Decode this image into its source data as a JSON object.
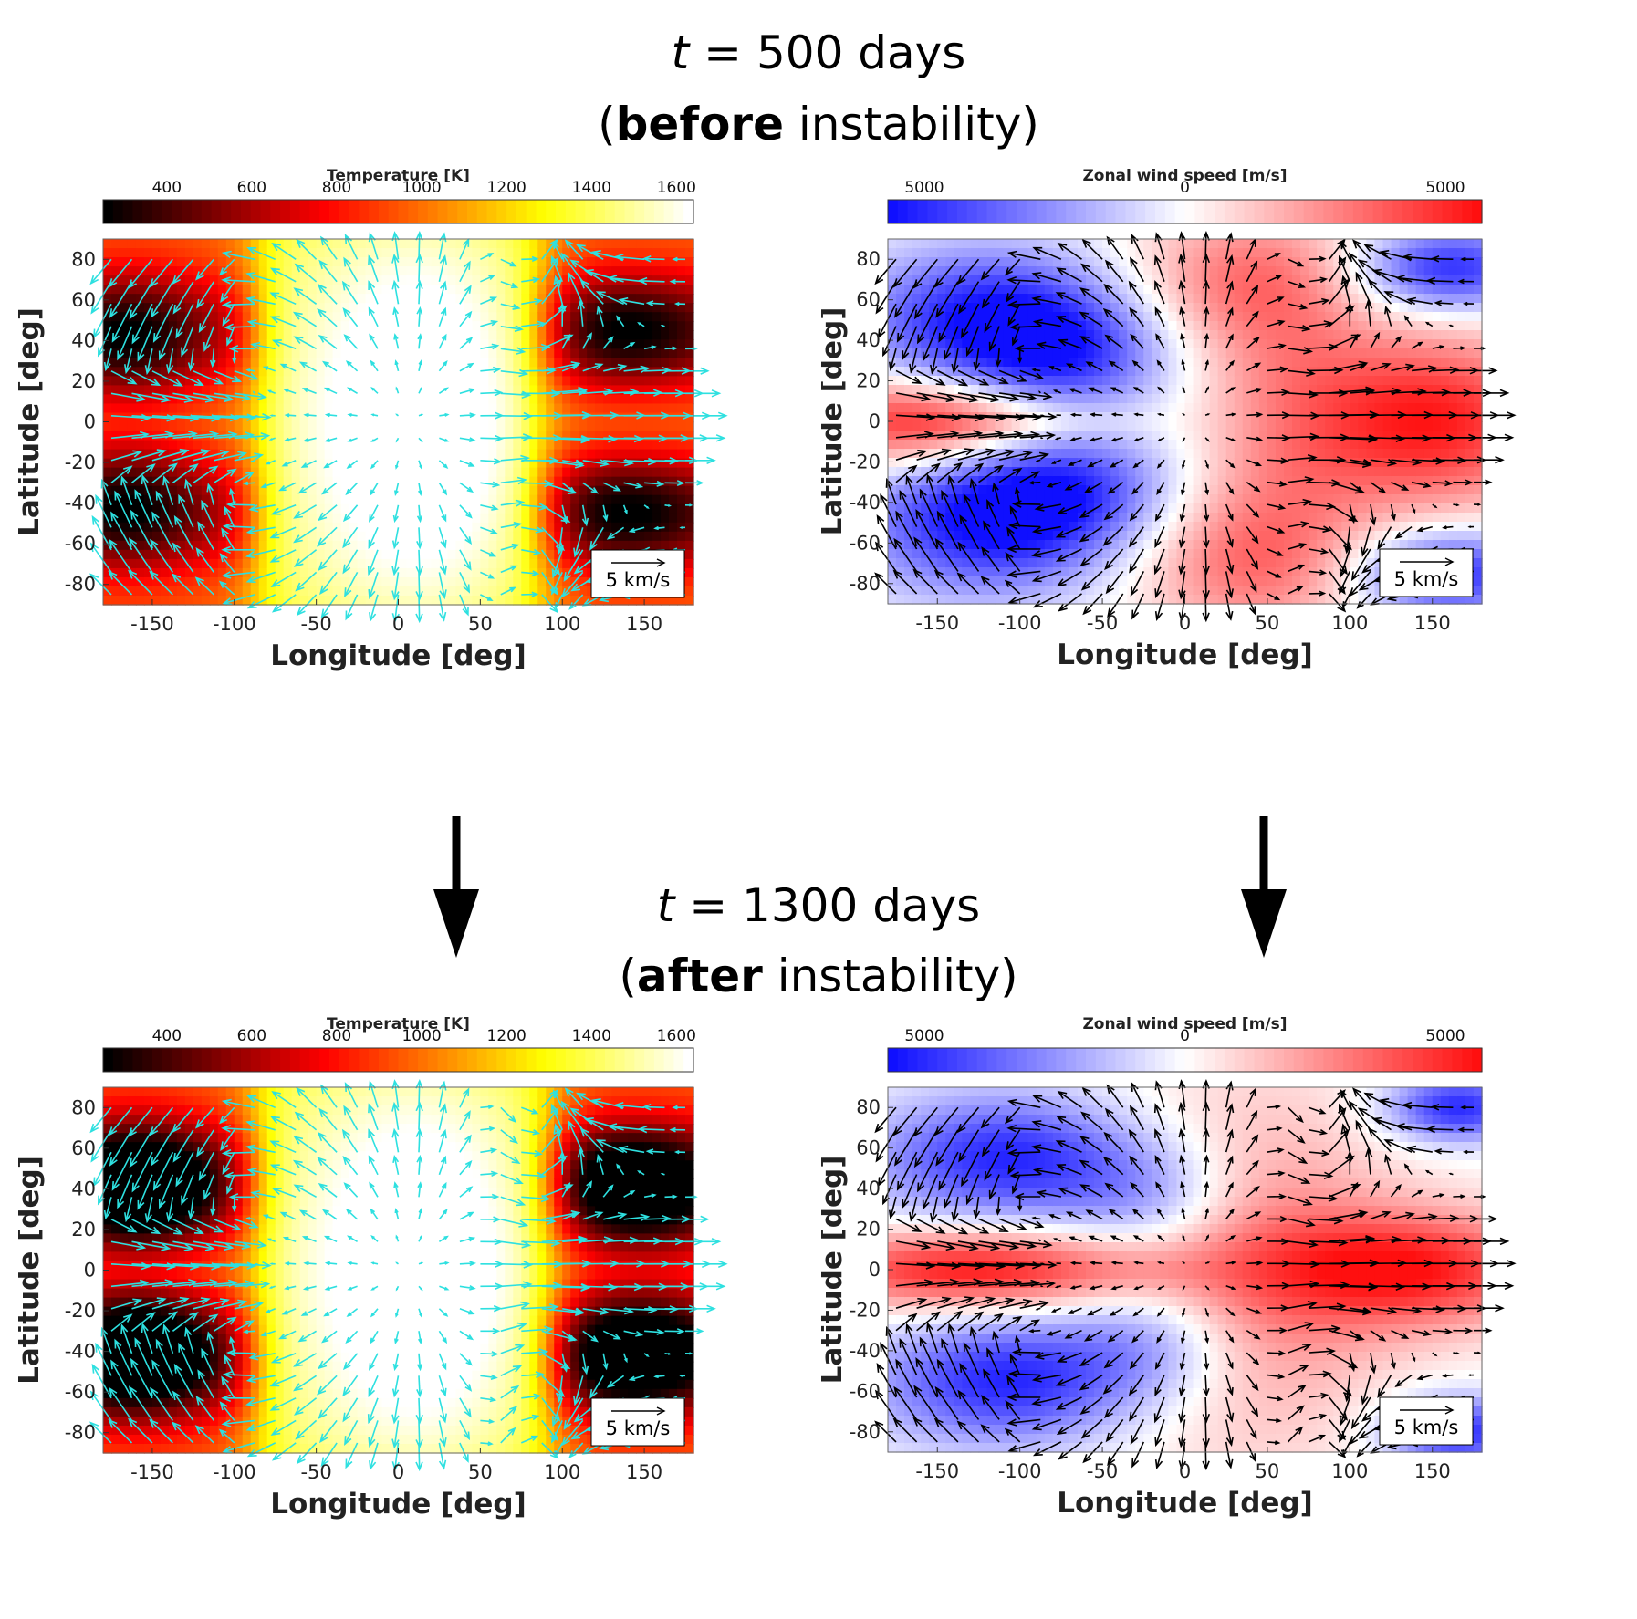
{
  "titles": [
    {
      "t_symbol": "t",
      "equation": " = 500 days",
      "paren_open": "(",
      "emphasis": "before",
      "rest": " instability)"
    },
    {
      "t_symbol": "t",
      "equation": " = 1300 days",
      "paren_open": "(",
      "emphasis": "after",
      "rest": " instability)"
    }
  ],
  "colors": {
    "wind_arrows_temperature": "#2ee0e0",
    "wind_arrows_zonal": "#000000",
    "zonal_negative": "#1010ff",
    "zonal_positive": "#ff1010"
  },
  "chart_data": [
    {
      "type": "heatmap",
      "id": "temp-500",
      "colorbar_label": "Temperature [K]",
      "colorbar_ticks": [
        "400",
        "600",
        "800",
        "1000",
        "1200",
        "1400",
        "1600"
      ],
      "colorbar_range": [
        250,
        1640
      ],
      "colormap": "hot",
      "xlabel": "Longitude [deg]",
      "ylabel": "Latitude [deg]",
      "x_ticks": [
        "-150",
        "-100",
        "-50",
        "0",
        "50",
        "100",
        "150"
      ],
      "y_ticks": [
        "80",
        "60",
        "40",
        "20",
        "0",
        "-20",
        "-40",
        "-60",
        "-80"
      ],
      "xlim": [
        -180,
        180
      ],
      "ylim": [
        -90,
        90
      ],
      "scale_label": "5 km/s",
      "dayside_lon_range": [
        -90,
        90
      ],
      "arrow_color": "#2ee0e0"
    },
    {
      "type": "heatmap",
      "id": "zonal-500",
      "colorbar_label": "Zonal wind speed [m/s]",
      "colorbar_ticks": [
        "5000",
        "0",
        "5000"
      ],
      "colorbar_range": [
        -5000,
        5000
      ],
      "colormap": "blue-white-red",
      "xlabel": "Longitude [deg]",
      "ylabel": "Latitude [deg]",
      "x_ticks": [
        "-150",
        "-100",
        "-50",
        "0",
        "50",
        "100",
        "150"
      ],
      "y_ticks": [
        "80",
        "60",
        "40",
        "20",
        "0",
        "-20",
        "-40",
        "-60",
        "-80"
      ],
      "xlim": [
        -180,
        180
      ],
      "ylim": [
        -90,
        90
      ],
      "scale_label": "5 km/s",
      "arrow_color": "#000000"
    },
    {
      "type": "heatmap",
      "id": "temp-1300",
      "colorbar_label": "Temperature [K]",
      "colorbar_ticks": [
        "400",
        "600",
        "800",
        "1000",
        "1200",
        "1400",
        "1600"
      ],
      "colorbar_range": [
        250,
        1640
      ],
      "colormap": "hot",
      "xlabel": "Longitude [deg]",
      "ylabel": "Latitude [deg]",
      "x_ticks": [
        "-150",
        "-100",
        "-50",
        "0",
        "50",
        "100",
        "150"
      ],
      "y_ticks": [
        "80",
        "60",
        "40",
        "20",
        "0",
        "-20",
        "-40",
        "-60",
        "-80"
      ],
      "xlim": [
        -180,
        180
      ],
      "ylim": [
        -90,
        90
      ],
      "scale_label": "5 km/s",
      "dayside_lon_range": [
        -90,
        95
      ],
      "arrow_color": "#2ee0e0"
    },
    {
      "type": "heatmap",
      "id": "zonal-1300",
      "colorbar_label": "Zonal wind speed [m/s]",
      "colorbar_ticks": [
        "5000",
        "0",
        "5000"
      ],
      "colorbar_range": [
        -5000,
        5000
      ],
      "colormap": "blue-white-red",
      "xlabel": "Longitude [deg]",
      "ylabel": "Latitude [deg]",
      "x_ticks": [
        "-150",
        "-100",
        "-50",
        "0",
        "50",
        "100",
        "150"
      ],
      "y_ticks": [
        "80",
        "60",
        "40",
        "20",
        "0",
        "-20",
        "-40",
        "-60",
        "-80"
      ],
      "xlim": [
        -180,
        180
      ],
      "ylim": [
        -90,
        90
      ],
      "scale_label": "5 km/s",
      "arrow_color": "#000000"
    }
  ]
}
